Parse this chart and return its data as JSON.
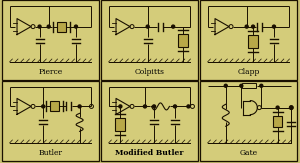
{
  "bg_color": "#c8c070",
  "panel_bg": "#d4cc7a",
  "border_color": "#1a1000",
  "component_color": "#1a1000",
  "labels": [
    "Pierce",
    "Colpitts",
    "Clapp",
    "Butler",
    "Modified Butler",
    "Gate"
  ],
  "fig_width": 3.0,
  "fig_height": 1.63,
  "dpi": 100
}
